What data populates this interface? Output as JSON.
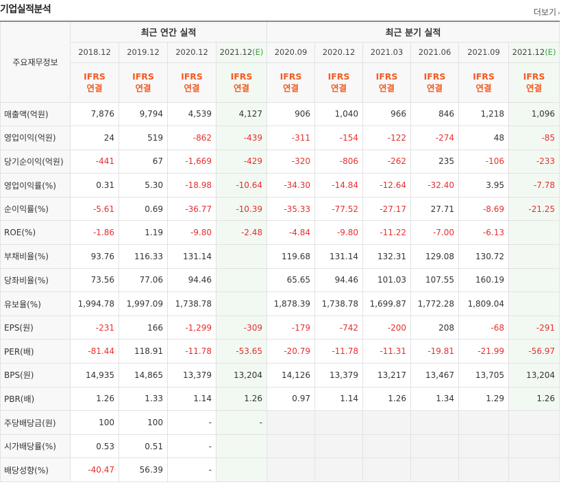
{
  "header": {
    "title": "기업실적분석",
    "more_label": "더보기"
  },
  "table": {
    "label_header": "주요재무정보",
    "group_annual": "최근 연간 실적",
    "group_quarterly": "최근 분기 실적",
    "annual_dates": [
      "2018.12",
      "2019.12",
      "2020.12",
      "2021.12"
    ],
    "annual_est_suffix": "(E)",
    "quarterly_dates": [
      "2020.09",
      "2020.12",
      "2021.03",
      "2021.06",
      "2021.09",
      "2021.12"
    ],
    "quarterly_est_suffix": "(E)",
    "basis_line1": "IFRS",
    "basis_line2": "연결",
    "rows": [
      {
        "label": "매출액(억원)",
        "values": [
          "7,876",
          "9,794",
          "4,539",
          "4,127",
          "906",
          "1,040",
          "966",
          "846",
          "1,218",
          "1,096"
        ]
      },
      {
        "label": "영업이익(억원)",
        "values": [
          "24",
          "519",
          "-862",
          "-439",
          "-311",
          "-154",
          "-122",
          "-274",
          "48",
          "-85"
        ]
      },
      {
        "label": "당기순이익(억원)",
        "values": [
          "-441",
          "67",
          "-1,669",
          "-429",
          "-320",
          "-806",
          "-262",
          "235",
          "-106",
          "-233"
        ]
      },
      {
        "label": "영업이익률(%)",
        "values": [
          "0.31",
          "5.30",
          "-18.98",
          "-10.64",
          "-34.30",
          "-14.84",
          "-12.64",
          "-32.40",
          "3.95",
          "-7.78"
        ]
      },
      {
        "label": "순이익률(%)",
        "values": [
          "-5.61",
          "0.69",
          "-36.77",
          "-10.39",
          "-35.33",
          "-77.52",
          "-27.17",
          "27.71",
          "-8.69",
          "-21.25"
        ]
      },
      {
        "label": "ROE(%)",
        "values": [
          "-1.86",
          "1.19",
          "-9.80",
          "-2.48",
          "-4.84",
          "-9.80",
          "-11.22",
          "-7.00",
          "-6.13",
          ""
        ]
      },
      {
        "label": "부채비율(%)",
        "values": [
          "93.76",
          "116.33",
          "131.14",
          "",
          "119.68",
          "131.14",
          "132.31",
          "129.08",
          "130.72",
          ""
        ]
      },
      {
        "label": "당좌비율(%)",
        "values": [
          "73.56",
          "77.06",
          "94.46",
          "",
          "65.65",
          "94.46",
          "101.03",
          "107.55",
          "160.19",
          ""
        ]
      },
      {
        "label": "유보율(%)",
        "values": [
          "1,994.78",
          "1,997.09",
          "1,738.78",
          "",
          "1,878.39",
          "1,738.78",
          "1,699.87",
          "1,772.28",
          "1,809.04",
          ""
        ]
      },
      {
        "label": "EPS(원)",
        "values": [
          "-231",
          "166",
          "-1,299",
          "-309",
          "-179",
          "-742",
          "-200",
          "208",
          "-68",
          "-291"
        ]
      },
      {
        "label": "PER(배)",
        "values": [
          "-81.44",
          "118.91",
          "-11.78",
          "-53.65",
          "-20.79",
          "-11.78",
          "-11.31",
          "-19.81",
          "-21.99",
          "-56.97"
        ]
      },
      {
        "label": "BPS(원)",
        "values": [
          "14,935",
          "14,865",
          "13,379",
          "13,204",
          "14,126",
          "13,379",
          "13,217",
          "13,467",
          "13,705",
          "13,204"
        ]
      },
      {
        "label": "PBR(배)",
        "values": [
          "1.26",
          "1.33",
          "1.14",
          "1.26",
          "0.97",
          "1.14",
          "1.26",
          "1.34",
          "1.29",
          "1.26"
        ]
      },
      {
        "label": "주당배당금(원)",
        "values": [
          "100",
          "100",
          "-",
          "-",
          "",
          "",
          "",
          "",
          "",
          ""
        ],
        "quarterly_empty": true
      },
      {
        "label": "시가배당률(%)",
        "values": [
          "0.53",
          "0.51",
          "-",
          "",
          "",
          "",
          "",
          "",
          "",
          ""
        ],
        "quarterly_empty": true
      },
      {
        "label": "배당성향(%)",
        "values": [
          "-40.47",
          "56.39",
          "-",
          "",
          "",
          "",
          "",
          "",
          "",
          ""
        ],
        "quarterly_empty": true
      }
    ]
  },
  "colors": {
    "negative": "#e62e2e",
    "ifrs": "#f45a24",
    "estimate_bg": "#f2f9f2",
    "estimate_paren": "#3aa03a"
  }
}
